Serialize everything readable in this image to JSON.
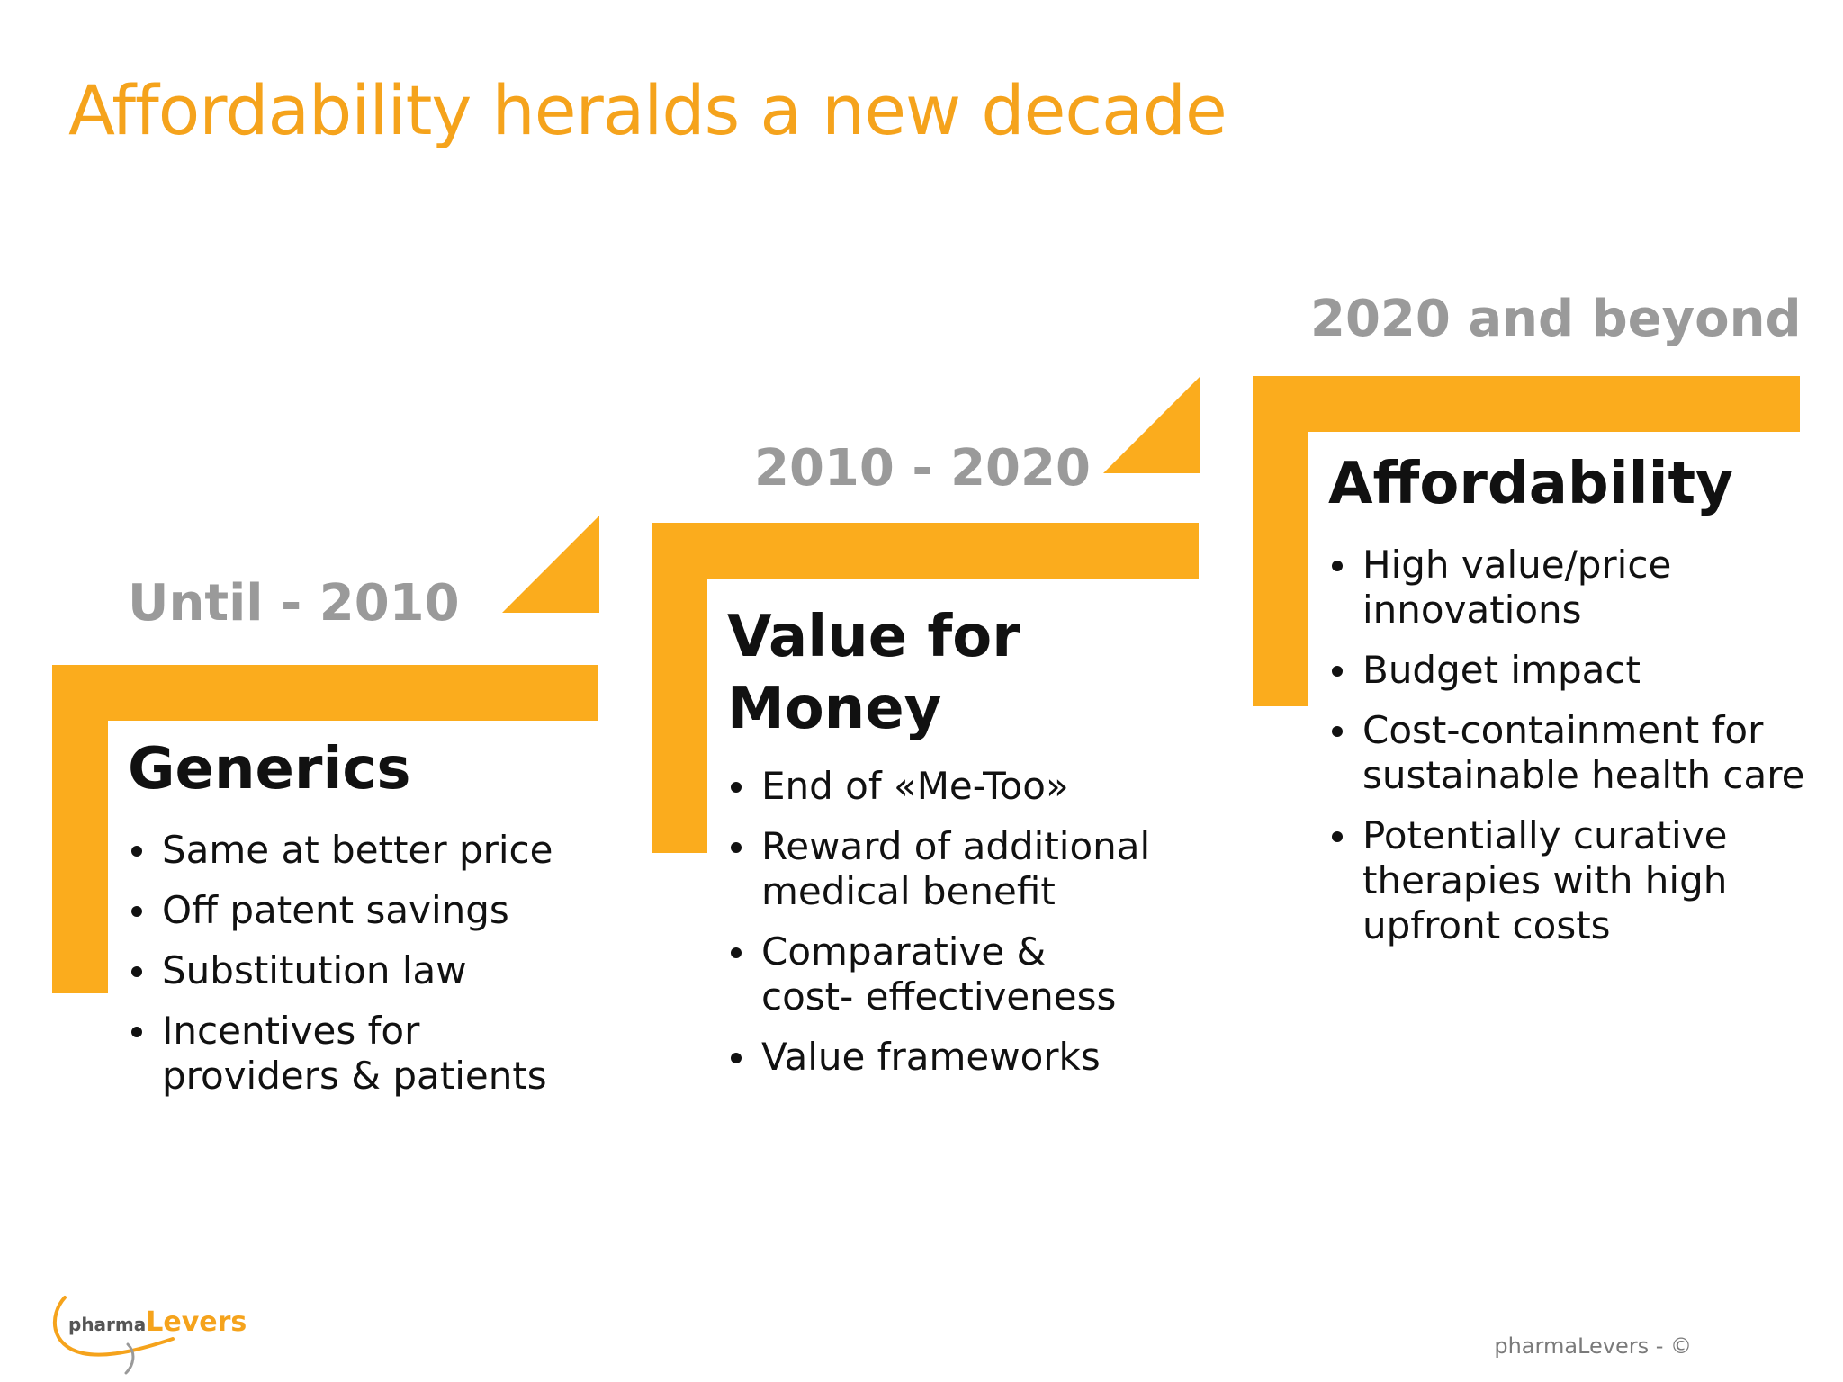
{
  "title": "Affordability heralds a new decade",
  "colors": {
    "accent": "#fbac1d",
    "title": "#f5a31c",
    "period": "#9a9a9a",
    "text": "#111111"
  },
  "steps": [
    {
      "period": "Until - 2010",
      "heading_lines": [
        "Generics"
      ],
      "bullets": [
        [
          "Same at better price"
        ],
        [
          "Off patent savings"
        ],
        [
          "Substitution law"
        ],
        [
          "Incentives for",
          "providers & patients"
        ]
      ]
    },
    {
      "period": "2010 - 2020",
      "heading_lines": [
        "Value for",
        "Money"
      ],
      "bullets": [
        [
          "End of «Me-Too»"
        ],
        [
          "Reward of additional",
          "medical benefit"
        ],
        [
          "Comparative &",
          "cost- effectiveness"
        ],
        [
          "Value frameworks"
        ]
      ]
    },
    {
      "period": "2020 and beyond",
      "heading_lines": [
        "Affordability"
      ],
      "bullets": [
        [
          "High value/price",
          "innovations"
        ],
        [
          "Budget impact"
        ],
        [
          "Cost-containment for",
          "sustainable health care"
        ],
        [
          "Potentially curative",
          "therapies with high",
          "upfront costs"
        ]
      ]
    }
  ],
  "logo": {
    "prefix": "pharma",
    "name": "Levers"
  },
  "footer": "pharmaLevers - ©"
}
